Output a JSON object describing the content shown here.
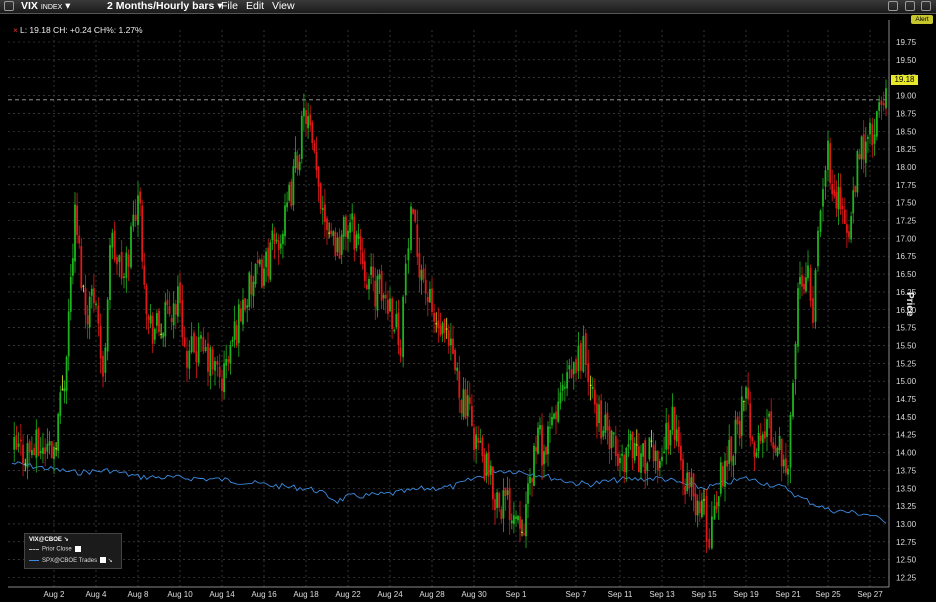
{
  "toolbar": {
    "ticker": "VIX",
    "ticker_sub": "INDEX",
    "range": "2 Months/Hourly bars",
    "menu_file": "File",
    "menu_edit": "Edit",
    "menu_view": "View",
    "alert": "Alert"
  },
  "stats": "L: 19.18 CH: +0.24 CH%: 1.27%",
  "legend": {
    "title": "VIX@CBOE",
    "prior_close": "Prior Close",
    "spx": "SPX@CBOE Trades"
  },
  "colors": {
    "up": "#1db31d",
    "down": "#e01818",
    "neutral": "#e8e82a",
    "spx_line": "#3b8be0",
    "grid": "#555555",
    "last_price_tag": "#e8e82a"
  },
  "chart_data": {
    "type": "candlestick",
    "ylabel": "Price",
    "ylim": [
      12.25,
      19.75
    ],
    "yticks": [
      "19.75",
      "19.50",
      "19.25",
      "19.00",
      "18.75",
      "18.50",
      "18.25",
      "18.00",
      "17.75",
      "17.50",
      "17.25",
      "17.00",
      "16.75",
      "16.50",
      "16.25",
      "16.00",
      "15.75",
      "15.50",
      "15.25",
      "15.00",
      "14.75",
      "14.50",
      "14.25",
      "14.00",
      "13.75",
      "13.50",
      "13.25",
      "13.00",
      "12.75",
      "12.50",
      "12.25"
    ],
    "xticks": [
      "Aug 2",
      "Aug 4",
      "Aug 8",
      "Aug 10",
      "Aug 14",
      "Aug 16",
      "Aug 18",
      "Aug 22",
      "Aug 24",
      "Aug 28",
      "Aug 30",
      "Sep 1",
      "Sep 7",
      "Sep 11",
      "Sep 13",
      "Sep 15",
      "Sep 19",
      "Sep 21",
      "Sep 25",
      "Sep 27"
    ],
    "last_price": "19.18",
    "prior_close": 18.94,
    "vix_path": [
      [
        "Aug 1",
        14.0
      ],
      [
        "Aug 2",
        14.1
      ],
      [
        "Aug 2",
        15.1
      ],
      [
        "Aug 3",
        17.3
      ],
      [
        "Aug 3",
        16.0
      ],
      [
        "Aug 4",
        16.3
      ],
      [
        "Aug 4",
        14.9
      ],
      [
        "Aug 5",
        17.0
      ],
      [
        "Aug 7",
        16.4
      ],
      [
        "Aug 8",
        17.7
      ],
      [
        "Aug 8",
        15.8
      ],
      [
        "Aug 9",
        15.7
      ],
      [
        "Aug 10",
        16.2
      ],
      [
        "Aug 10",
        15.1
      ],
      [
        "Aug 11",
        15.5
      ],
      [
        "Aug 13",
        15.3
      ],
      [
        "Aug 14",
        15.0
      ],
      [
        "Aug 15",
        16.1
      ],
      [
        "Aug 16",
        16.6
      ],
      [
        "Aug 17",
        17.2
      ],
      [
        "Aug 18",
        18.8
      ],
      [
        "Aug 19",
        17.8
      ],
      [
        "Aug 20",
        17.3
      ],
      [
        "Aug 21",
        16.9
      ],
      [
        "Aug 22",
        17.2
      ],
      [
        "Aug 22",
        17.0
      ],
      [
        "Aug 23",
        16.4
      ],
      [
        "Aug 24",
        16.1
      ],
      [
        "Aug 25",
        15.6
      ],
      [
        "Aug 25",
        16.6
      ],
      [
        "Aug 26",
        17.2
      ],
      [
        "Aug 27",
        16.6
      ],
      [
        "Aug 28",
        15.9
      ],
      [
        "Aug 29",
        15.3
      ],
      [
        "Aug 29",
        14.7
      ],
      [
        "Aug 30",
        14.3
      ],
      [
        "Aug 30",
        13.8
      ],
      [
        "Aug 31",
        13.4
      ],
      [
        "Sep 1",
        13.2
      ],
      [
        "Sep 1",
        13.1
      ],
      [
        "Sep 5",
        14.2
      ],
      [
        "Sep 5",
        14.0
      ],
      [
        "Sep 6",
        14.6
      ],
      [
        "Sep 7",
        15.2
      ],
      [
        "Sep 7",
        15.5
      ],
      [
        "Sep 8",
        14.8
      ],
      [
        "Sep 10",
        14.3
      ],
      [
        "Sep 11",
        13.8
      ],
      [
        "Sep 11",
        14.2
      ],
      [
        "Sep 12",
        13.9
      ],
      [
        "Sep 13",
        14.0
      ],
      [
        "Sep 13",
        14.5
      ],
      [
        "Sep 14",
        13.7
      ],
      [
        "Sep 15",
        13.1
      ],
      [
        "Sep 15",
        12.8
      ],
      [
        "Sep 16",
        13.3
      ],
      [
        "Sep 17",
        13.9
      ],
      [
        "Sep 18",
        14.3
      ],
      [
        "Sep 19",
        14.7
      ],
      [
        "Sep 19",
        14.0
      ],
      [
        "Sep 20",
        14.4
      ],
      [
        "Sep 21",
        13.9
      ],
      [
        "Sep 21",
        14.8
      ],
      [
        "Sep 22",
        16.3
      ],
      [
        "Sep 23",
        16.7
      ],
      [
        "Sep 23",
        16.0
      ],
      [
        "Sep 24",
        17.2
      ],
      [
        "Sep 24",
        17.9
      ],
      [
        "Sep 25",
        18.1
      ],
      [
        "Sep 26",
        17.0
      ],
      [
        "Sep 26",
        18.2
      ],
      [
        "Sep 27",
        18.4
      ],
      [
        "Sep 28",
        18.9
      ],
      [
        "Sep 28",
        19.18
      ]
    ],
    "spx_path": [
      [
        "Aug 1",
        13.85
      ],
      [
        "Aug 3",
        13.72
      ],
      [
        "Aug 5",
        13.75
      ],
      [
        "Aug 8",
        13.66
      ],
      [
        "Aug 11",
        13.64
      ],
      [
        "Aug 14",
        13.62
      ],
      [
        "Aug 17",
        13.52
      ],
      [
        "Aug 18",
        13.5
      ],
      [
        "Aug 19",
        13.47
      ],
      [
        "Aug 21",
        13.32
      ],
      [
        "Aug 22",
        13.38
      ],
      [
        "Aug 24",
        13.42
      ],
      [
        "Aug 27",
        13.49
      ],
      [
        "Aug 29",
        13.52
      ],
      [
        "Aug 31",
        13.75
      ],
      [
        "Sep 1",
        13.74
      ],
      [
        "Sep 5",
        13.7
      ],
      [
        "Sep 7",
        13.57
      ],
      [
        "Sep 8",
        13.56
      ],
      [
        "Sep 11",
        13.62
      ],
      [
        "Sep 13",
        13.64
      ],
      [
        "Sep 14",
        13.56
      ],
      [
        "Sep 15",
        13.5
      ],
      [
        "Sep 19",
        13.64
      ],
      [
        "Sep 21",
        13.49
      ],
      [
        "Sep 22",
        13.38
      ],
      [
        "Sep 25",
        13.2
      ],
      [
        "Sep 27",
        13.13
      ],
      [
        "Sep 28",
        13.01
      ]
    ]
  }
}
